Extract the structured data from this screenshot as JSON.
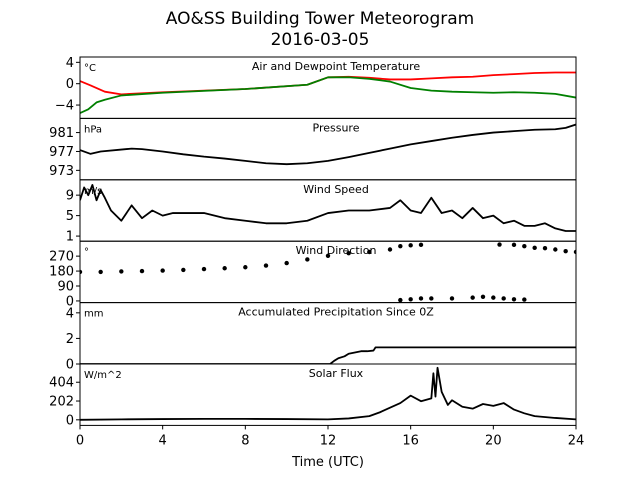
{
  "figure": {
    "title_line1": "AO&SS Building Tower Meteorogram",
    "title_line2": "2016-03-05",
    "xlabel": "Time (UTC)",
    "xlim": [
      0,
      24
    ],
    "xticks": [
      0,
      4,
      8,
      12,
      16,
      20,
      24
    ]
  },
  "chart_data": [
    {
      "type": "line",
      "title": "Air and Dewpoint Temperature",
      "unit": "°C",
      "ylim": [
        -6.5,
        5
      ],
      "yticks": [
        -4,
        0,
        4
      ],
      "series": [
        {
          "color": "#ff0000",
          "x": [
            0,
            0.5,
            1.2,
            2,
            4,
            8,
            11,
            12,
            13,
            14,
            15,
            16,
            17,
            18,
            19,
            20,
            21,
            22,
            23,
            24
          ],
          "y": [
            0.5,
            -0.3,
            -1.5,
            -2.0,
            -1.6,
            -1.0,
            -0.2,
            1.2,
            1.3,
            1.1,
            0.8,
            0.8,
            1.0,
            1.2,
            1.3,
            1.6,
            1.8,
            2.0,
            2.1,
            2.1
          ]
        },
        {
          "color": "#008000",
          "x": [
            0,
            0.4,
            0.8,
            1.2,
            2,
            4,
            8,
            11,
            12,
            13,
            14,
            15,
            16,
            17,
            18,
            19,
            20,
            21,
            22,
            23,
            24
          ],
          "y": [
            -5.5,
            -4.8,
            -3.5,
            -3.0,
            -2.2,
            -1.7,
            -1.0,
            -0.2,
            1.2,
            1.2,
            0.9,
            0.4,
            -0.8,
            -1.3,
            -1.5,
            -1.6,
            -1.7,
            -1.6,
            -1.7,
            -1.9,
            -2.6
          ]
        }
      ]
    },
    {
      "type": "line",
      "title": "Pressure",
      "unit": "hPa",
      "ylim": [
        971,
        984
      ],
      "yticks": [
        973,
        977,
        981
      ],
      "series": [
        {
          "color": "#000000",
          "x": [
            0,
            0.5,
            1,
            2,
            2.5,
            3,
            4,
            5,
            6,
            7,
            8,
            9,
            10,
            11,
            12,
            13,
            14,
            15,
            16,
            17,
            18,
            19,
            20,
            21,
            22,
            23,
            23.5,
            24
          ],
          "y": [
            977.3,
            976.5,
            977.0,
            977.4,
            977.6,
            977.5,
            977.0,
            976.4,
            975.9,
            975.5,
            975.0,
            974.5,
            974.3,
            974.5,
            975.0,
            975.8,
            976.7,
            977.6,
            978.5,
            979.2,
            979.9,
            980.5,
            981.0,
            981.3,
            981.6,
            981.7,
            982.0,
            982.7
          ]
        }
      ]
    },
    {
      "type": "line",
      "title": "Wind Speed",
      "unit": "m/s",
      "ylim": [
        0,
        12
      ],
      "yticks": [
        1,
        5,
        9
      ],
      "series": [
        {
          "color": "#000000",
          "x": [
            0,
            0.2,
            0.4,
            0.6,
            0.8,
            1,
            1.2,
            1.5,
            2,
            2.5,
            3,
            3.5,
            4,
            4.5,
            5,
            6,
            7,
            8,
            9,
            10,
            11,
            12,
            13,
            14,
            15,
            15.5,
            16,
            16.5,
            17,
            17.5,
            18,
            18.5,
            19,
            19.5,
            20,
            20.5,
            21,
            21.5,
            22,
            22.5,
            23,
            23.5,
            24
          ],
          "y": [
            8,
            10.5,
            9,
            11,
            8,
            10,
            8.5,
            6,
            4,
            7,
            4.5,
            6,
            5,
            5.5,
            5.5,
            5.5,
            4.5,
            4,
            3.5,
            3.5,
            4,
            5.5,
            6,
            6,
            6.5,
            8,
            6,
            5.5,
            8.5,
            5.5,
            6,
            4.5,
            6.5,
            4.5,
            5,
            3.5,
            4,
            3,
            3,
            3.5,
            2.5,
            2,
            2
          ]
        }
      ]
    },
    {
      "type": "scatter",
      "title": "Wind Direction",
      "unit": "°",
      "ylim": [
        -10,
        360
      ],
      "yticks": [
        0,
        90,
        180,
        270
      ],
      "series": [
        {
          "color": "#000000",
          "x": [
            0,
            1,
            2,
            3,
            4,
            5,
            6,
            7,
            8,
            9,
            10,
            11,
            12,
            13,
            14,
            15,
            15.5,
            16,
            16.5
          ],
          "y": [
            175,
            175,
            178,
            180,
            183,
            187,
            192,
            197,
            203,
            213,
            228,
            250,
            272,
            288,
            295,
            310,
            330,
            335,
            338
          ]
        },
        {
          "color": "#000000",
          "x": [
            15.5,
            16,
            16.5,
            17,
            18,
            19,
            19.5,
            20,
            20.5,
            21,
            21.5
          ],
          "y": [
            5,
            10,
            15,
            15,
            15,
            20,
            25,
            20,
            15,
            10,
            8
          ]
        },
        {
          "color": "#000000",
          "x": [
            20.3,
            21,
            21.5,
            22,
            22.5,
            23,
            23.5,
            24
          ],
          "y": [
            340,
            338,
            330,
            320,
            318,
            310,
            300,
            295
          ]
        }
      ]
    },
    {
      "type": "line",
      "title": "Accumulated Precipitation Since 0Z",
      "unit": "mm",
      "ylim": [
        0,
        4.8
      ],
      "yticks": [
        0,
        2,
        4
      ],
      "series": [
        {
          "color": "#000000",
          "x": [
            0,
            12.1,
            12.3,
            12.5,
            12.8,
            13.0,
            13.3,
            13.6,
            13.9,
            14.2,
            14.3,
            24
          ],
          "y": [
            0,
            0,
            0.25,
            0.45,
            0.6,
            0.8,
            0.9,
            1.0,
            1.0,
            1.05,
            1.3,
            1.3
          ]
        }
      ]
    },
    {
      "type": "line",
      "title": "Solar Flux",
      "unit": "W/m^2",
      "ylim": [
        -60,
        600
      ],
      "yticks": [
        0,
        202,
        404
      ],
      "series": [
        {
          "color": "#000000",
          "x": [
            0,
            2,
            4,
            6,
            8,
            10,
            12,
            13,
            14,
            14.5,
            15,
            15.5,
            16,
            16.5,
            17,
            17.1,
            17.2,
            17.3,
            17.5,
            17.8,
            18,
            18.5,
            19,
            19.5,
            20,
            20.5,
            21,
            21.5,
            22,
            23,
            24
          ],
          "y": [
            0,
            5,
            8,
            10,
            10,
            8,
            5,
            15,
            40,
            80,
            130,
            180,
            260,
            200,
            230,
            500,
            250,
            560,
            300,
            160,
            210,
            140,
            120,
            170,
            150,
            180,
            110,
            70,
            40,
            20,
            5
          ]
        }
      ]
    }
  ]
}
